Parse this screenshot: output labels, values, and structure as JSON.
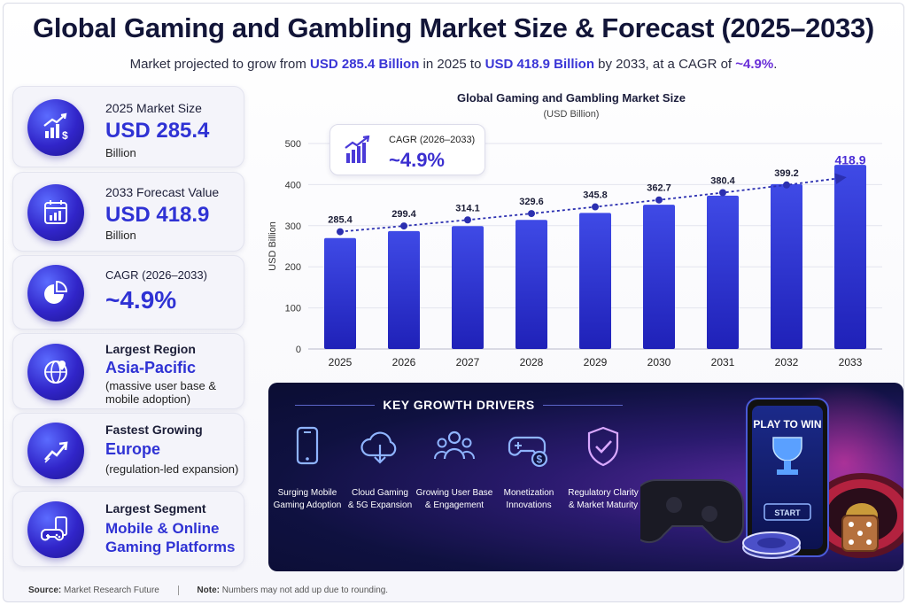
{
  "header": {
    "title": "Global Gaming and Gambling Market Size & Forecast (2025–2033)",
    "subtitle_pre": "Market projected to grow from ",
    "subtitle_v1": "USD 285.4 Billion",
    "subtitle_mid": " in 2025 to ",
    "subtitle_v2": "USD 418.9 Billion",
    "subtitle_post": " by 2033, at a CAGR of ",
    "subtitle_cagr": "~4.9%",
    "subtitle_end": "."
  },
  "cards": {
    "c1": {
      "label": "2025 Market Size",
      "currency": "USD",
      "value": "285.4",
      "unit": "Billion",
      "icon": "bar-chart-dollar-icon"
    },
    "c2": {
      "label": "2033 Forecast Value",
      "currency": "USD",
      "value": "418.9",
      "unit": "Billion",
      "icon": "calendar-chart-icon"
    },
    "c3": {
      "label": "CAGR (2026–2033)",
      "value": "~4.9%",
      "icon": "pie-chart-icon"
    },
    "c4": {
      "label": "Largest Region",
      "value": "Asia-Pacific",
      "note": "(massive user base & mobile adoption)",
      "icon": "globe-pin-icon"
    },
    "c5": {
      "label": "Fastest Growing",
      "value": "Europe",
      "note": "(regulation-led expansion)",
      "icon": "trend-up-icon"
    },
    "c6": {
      "label": "Largest Segment",
      "value": "Mobile & Online Gaming Platforms",
      "icon": "mobile-gamepad-icon"
    }
  },
  "chart_data": {
    "type": "bar",
    "title": "Global Gaming and Gambling Market Size",
    "subtitle": "(USD Billion)",
    "ylabel": "USD Billion",
    "xlabel": "",
    "categories": [
      "2025",
      "2026",
      "2027",
      "2028",
      "2029",
      "2030",
      "2031",
      "2032",
      "2033"
    ],
    "values": [
      270,
      287,
      299,
      314,
      331,
      351,
      373,
      401,
      448
    ],
    "trend_labels": [
      "285.4",
      "299.4",
      "314.1",
      "329.6",
      "345.8",
      "362.7",
      "380.4",
      "399.2",
      "418.9"
    ],
    "trend_values": [
      285.4,
      299.4,
      314.1,
      329.6,
      345.8,
      362.7,
      380.4,
      399.2,
      418.9
    ],
    "ylim": [
      0,
      500
    ],
    "yticks": [
      0,
      100,
      200,
      300,
      400,
      500
    ],
    "grid": true,
    "colors": {
      "bar_top": "#3f4ae6",
      "bar_bottom": "#1f21b8",
      "trend": "#2b2fb0",
      "last_label": "#4b2fd6"
    }
  },
  "cagr_box": {
    "label": "CAGR (2026–2033)",
    "value": "~4.9%"
  },
  "drivers": {
    "heading": "KEY GROWTH DRIVERS",
    "items": [
      {
        "line1": "Surging Mobile",
        "line2": "Gaming Adoption",
        "icon": "smartphone-icon"
      },
      {
        "line1": "Cloud Gaming",
        "line2": "& 5G Expansion",
        "icon": "cloud-download-icon"
      },
      {
        "line1": "Growing User Base",
        "line2": "& Engagement",
        "icon": "users-icon"
      },
      {
        "line1": "Monetization",
        "line2": "Innovations",
        "icon": "gamepad-dollar-icon"
      },
      {
        "line1": "Regulatory Clarity",
        "line2": "& Market Maturity",
        "icon": "shield-check-icon"
      }
    ],
    "art": {
      "screen_title": "PLAY TO WIN",
      "screen_button": "START"
    }
  },
  "footer": {
    "source_label": "Source:",
    "source": "Market Research Future",
    "note_label": "Note:",
    "note": "Numbers may not add up due to rounding."
  }
}
